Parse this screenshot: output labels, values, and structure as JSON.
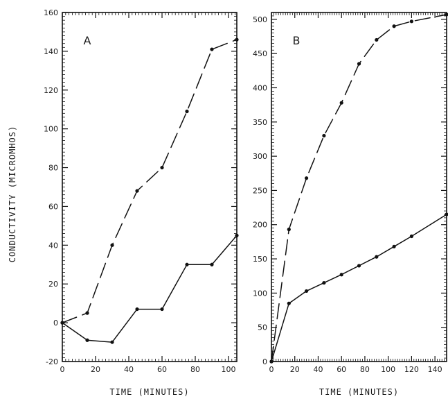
{
  "figure": {
    "ylabel": "CONDUCTIVITY (MICROMHOS)"
  },
  "chart_data": [
    {
      "type": "line",
      "panel_label": "A",
      "xlabel": "TIME (MINUTES)",
      "ylabel": "CONDUCTIVITY (MICROMHOS)",
      "xlim": [
        0,
        105
      ],
      "ylim": [
        -20,
        160
      ],
      "x_ticks": [
        0,
        20,
        40,
        60,
        80,
        100
      ],
      "y_ticks": [
        -20,
        0,
        20,
        40,
        60,
        80,
        100,
        120,
        140,
        160
      ],
      "x_tick_labels": [
        "0",
        "20",
        "40",
        "60",
        "80",
        "100"
      ],
      "y_tick_labels": [
        "-20",
        "0",
        "20",
        "40",
        "60",
        "80",
        "100",
        "120",
        "140",
        "160"
      ],
      "grid": false,
      "series": [
        {
          "style": "dashed",
          "x": [
            0,
            15,
            30,
            45,
            60,
            75,
            90,
            105
          ],
          "y": [
            0,
            5,
            40,
            68,
            80,
            109,
            141,
            146
          ]
        },
        {
          "style": "solid",
          "x": [
            0,
            15,
            30,
            45,
            60,
            75,
            90,
            105
          ],
          "y": [
            0,
            -9,
            -10,
            7,
            7,
            30,
            30,
            45
          ]
        }
      ]
    },
    {
      "type": "line",
      "panel_label": "B",
      "xlabel": "TIME (MINUTES)",
      "ylabel": "",
      "xlim": [
        0,
        150
      ],
      "ylim": [
        0,
        510
      ],
      "x_ticks": [
        0,
        20,
        40,
        60,
        80,
        100,
        120,
        140
      ],
      "y_ticks": [
        0,
        50,
        100,
        150,
        200,
        250,
        300,
        350,
        400,
        450,
        500
      ],
      "x_tick_labels": [
        "0",
        "20",
        "40",
        "60",
        "80",
        "100",
        "120",
        "140"
      ],
      "y_tick_labels": [
        "0",
        "50",
        "100",
        "150",
        "200",
        "250",
        "300",
        "350",
        "400",
        "450",
        "500"
      ],
      "grid": false,
      "series": [
        {
          "style": "dashed",
          "x": [
            0,
            15,
            30,
            45,
            60,
            75,
            90,
            105,
            120,
            150
          ],
          "y": [
            0,
            193,
            268,
            330,
            378,
            435,
            470,
            490,
            497,
            507
          ]
        },
        {
          "style": "solid",
          "x": [
            0,
            15,
            30,
            45,
            60,
            75,
            90,
            105,
            120,
            150
          ],
          "y": [
            0,
            85,
            103,
            115,
            127,
            140,
            153,
            168,
            183,
            215
          ]
        }
      ]
    }
  ]
}
